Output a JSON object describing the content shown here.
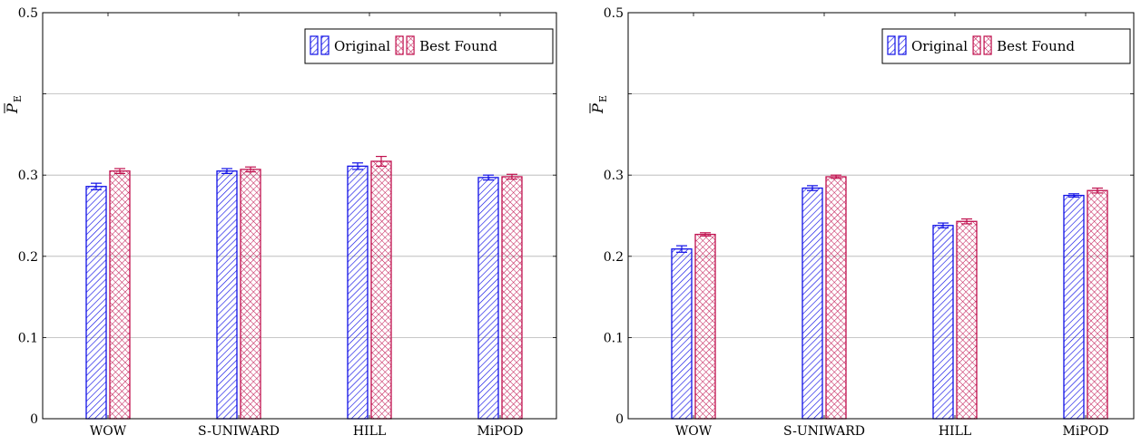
{
  "colors": {
    "original": "#1010e6",
    "best_found": "#c0104e",
    "grid": "#b5b5b5",
    "axis": "#000000"
  },
  "chart_data": [
    {
      "type": "bar",
      "ylabel": "P̅E",
      "ylim": [
        0,
        0.5
      ],
      "yticks": [
        0,
        0.1,
        0.2,
        0.3,
        0.4,
        0.5
      ],
      "ytick_labels": [
        "0",
        "0.1",
        "0.2",
        "0.3",
        "",
        "0.5"
      ],
      "grid": "horizontal",
      "legend_placement": "top-right",
      "categories": [
        "WOW",
        "S-UNIWARD",
        "HILL",
        "MiPOD"
      ],
      "series": [
        {
          "name": "Original",
          "color_key": "original",
          "pattern": "diagonal-hatch",
          "values": [
            0.286,
            0.305,
            0.311,
            0.297
          ],
          "errors": [
            0.004,
            0.003,
            0.004,
            0.003
          ]
        },
        {
          "name": "Best Found",
          "color_key": "best_found",
          "pattern": "crosshatch",
          "values": [
            0.305,
            0.307,
            0.317,
            0.298
          ],
          "errors": [
            0.003,
            0.003,
            0.006,
            0.003
          ]
        }
      ]
    },
    {
      "type": "bar",
      "ylabel": "P̅E",
      "ylim": [
        0,
        0.5
      ],
      "yticks": [
        0,
        0.1,
        0.2,
        0.3,
        0.4,
        0.5
      ],
      "ytick_labels": [
        "0",
        "0.1",
        "0.2",
        "0.3",
        "",
        "0.5"
      ],
      "grid": "horizontal",
      "legend_placement": "top-right",
      "categories": [
        "WOW",
        "S-UNIWARD",
        "HILL",
        "MiPOD"
      ],
      "series": [
        {
          "name": "Original",
          "color_key": "original",
          "pattern": "diagonal-hatch",
          "values": [
            0.209,
            0.284,
            0.238,
            0.275
          ],
          "errors": [
            0.004,
            0.003,
            0.003,
            0.002
          ]
        },
        {
          "name": "Best Found",
          "color_key": "best_found",
          "pattern": "crosshatch",
          "values": [
            0.227,
            0.298,
            0.243,
            0.281
          ],
          "errors": [
            0.002,
            0.002,
            0.003,
            0.003
          ]
        }
      ]
    }
  ]
}
